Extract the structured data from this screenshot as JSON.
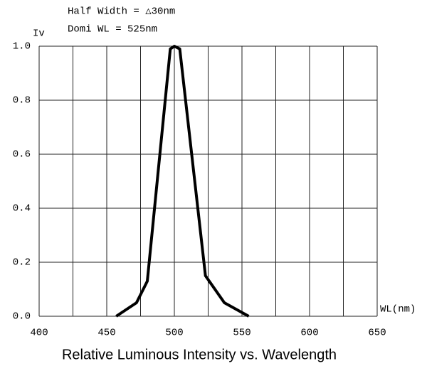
{
  "chart_data": {
    "type": "line",
    "title": "Relative Luminous Intensity vs. Wavelength",
    "annotations": [
      "Half Width  = △30nm",
      "Domi WL = 525nm"
    ],
    "y_label": "Iv",
    "x_label": "WL(nm)",
    "x": [
      457,
      472,
      480,
      497,
      500,
      504,
      523,
      537,
      555
    ],
    "series": [
      {
        "name": "Iv",
        "color": "#000000",
        "values": [
          0,
          0.05,
          0.13,
          0.99,
          1.0,
          0.99,
          0.15,
          0.05,
          0
        ]
      }
    ],
    "xlim": [
      400,
      650
    ],
    "xticks": [
      400,
      450,
      500,
      550,
      600,
      650
    ],
    "xminorticks": [
      425,
      475,
      525,
      575,
      625
    ],
    "ylim": [
      0,
      1
    ],
    "yticks": [
      {
        "value": 0,
        "label": "0.0"
      },
      0.2,
      0.4,
      0.6,
      0.8,
      {
        "value": 1,
        "label": "1.0"
      }
    ],
    "grid": true
  }
}
